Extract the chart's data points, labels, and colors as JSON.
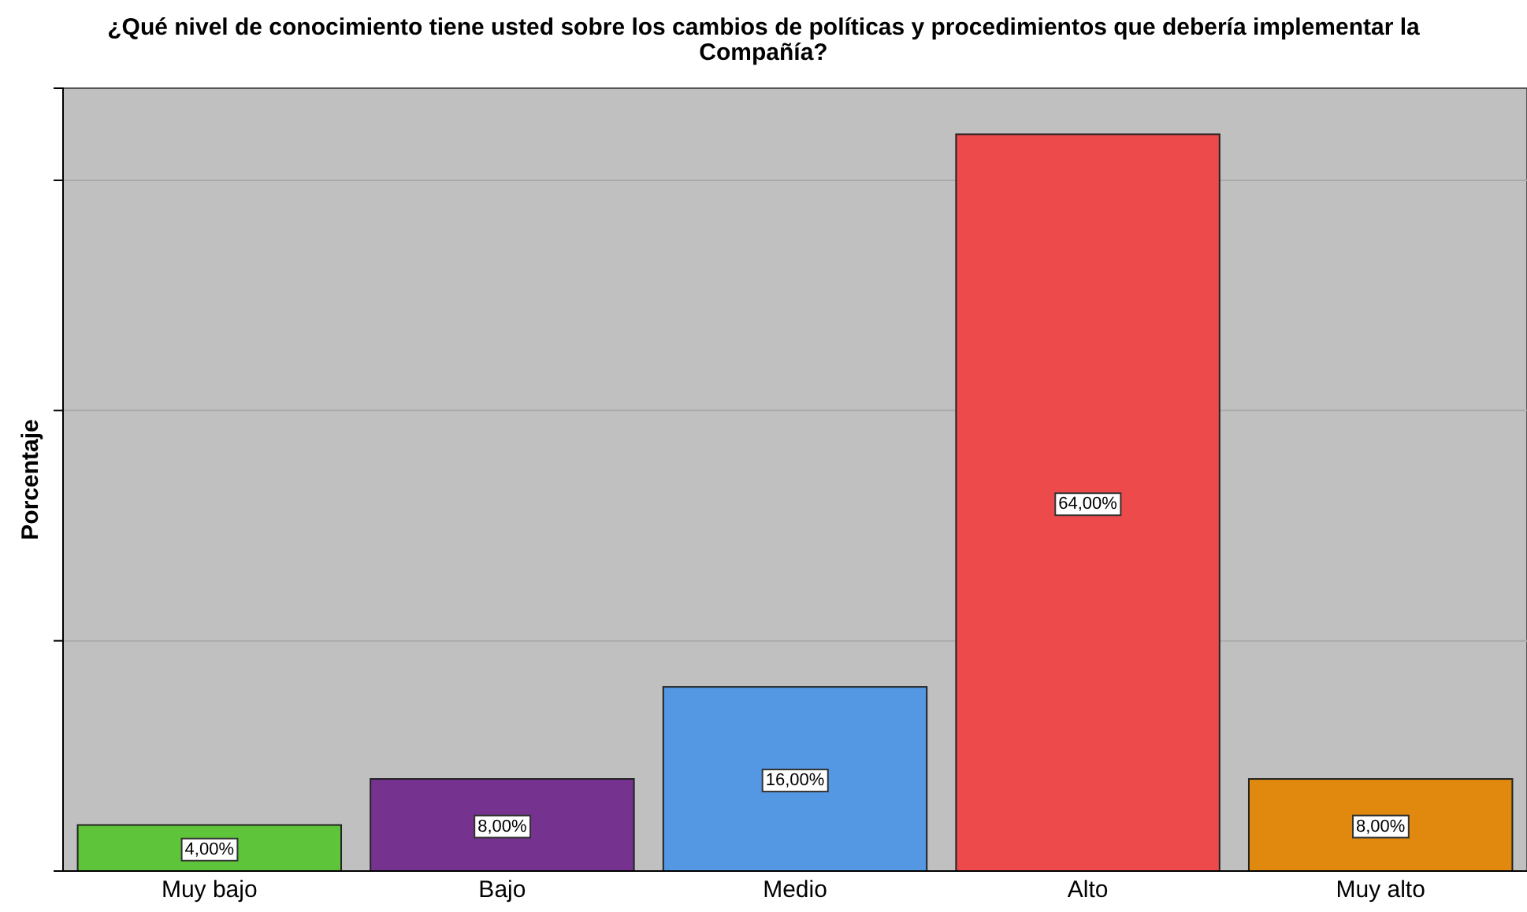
{
  "chart_data": {
    "type": "bar",
    "title": "¿Qué nivel de conocimiento tiene usted sobre los cambios de políticas y procedimientos que debería implementar la Compañía?",
    "ylabel": "Porcentaje",
    "categories": [
      "Muy bajo",
      "Bajo",
      "Medio",
      "Alto",
      "Muy alto"
    ],
    "values": [
      4,
      8,
      16,
      64,
      8
    ],
    "colors": [
      "#5ec43a",
      "#75338f",
      "#5497e3",
      "#ec4a4b",
      "#e0890e"
    ],
    "value_labels": [
      "4,00%",
      "8,00%",
      "16,00%",
      "64,00%",
      "8,00%"
    ],
    "ylim": [
      0,
      68
    ],
    "yticks": [
      {
        "value": 20,
        "label": null
      },
      {
        "value": 40,
        "label": null
      },
      {
        "value": 60,
        "label": null
      }
    ],
    "grid": "y",
    "tick_labels": "x"
  }
}
